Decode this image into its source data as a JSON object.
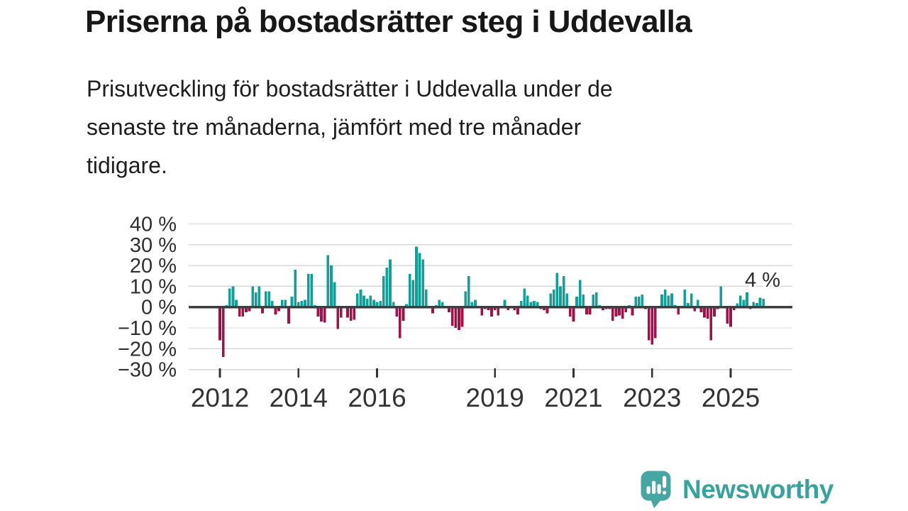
{
  "header": {
    "title": "Priserna på bostadsrätter steg i Uddevalla",
    "subtitle": "Prisutveckling för bostadsrätter i Uddevalla under de\nsenaste tre månaderna, jämfört med tre månader\ntidigare."
  },
  "chart_data": {
    "type": "bar",
    "unit": "%",
    "frequency": "monthly",
    "start_month": "2012-01",
    "end_month": "2025-11",
    "values": [
      -16,
      -24,
      1,
      9,
      10,
      3.5,
      -4.5,
      -4.5,
      -2.5,
      -2,
      10,
      7,
      10,
      -3,
      7.5,
      7.5,
      3,
      -3.5,
      -2,
      3.5,
      3.5,
      -8,
      5,
      18,
      2.5,
      3,
      3.5,
      16,
      16,
      1,
      -4.5,
      -7,
      -7.5,
      25,
      20,
      12,
      -10.5,
      -5,
      0.5,
      -5,
      -6.5,
      -6,
      6.5,
      8.5,
      5.5,
      4,
      5.5,
      3.5,
      2.5,
      3,
      15,
      19,
      23,
      2.5,
      -4.5,
      -15,
      -6.5,
      1.5,
      16,
      13,
      29,
      26,
      23,
      8.5,
      0,
      -3,
      1,
      3.5,
      2.5,
      0,
      -2.5,
      -9,
      -10,
      -11,
      -9.5,
      7.5,
      15,
      2.5,
      3.5,
      0,
      -4,
      -1,
      -1.5,
      -4.5,
      -1.5,
      -4,
      0,
      3.5,
      -1.5,
      0,
      -1.5,
      -3.5,
      3,
      9,
      5.5,
      2.5,
      3,
      2.5,
      -1,
      -1.5,
      -3,
      6.5,
      8.5,
      16.5,
      10,
      15,
      6.5,
      -4.5,
      -7,
      5,
      13,
      6,
      -3.5,
      -3.5,
      6,
      7,
      1,
      -1.5,
      -1,
      -1,
      -6.5,
      -4.5,
      -4,
      -5.5,
      -2.5,
      1,
      -4,
      5,
      5,
      6,
      -1,
      -16,
      -18,
      -15,
      0,
      6,
      8.5,
      5.5,
      6.5,
      1,
      -3.5,
      0,
      8.5,
      2,
      6.5,
      -2,
      3.5,
      -2.5,
      -5,
      -5.5,
      -16,
      -4.5,
      -1,
      10,
      -0.5,
      -8,
      -9.5,
      -1.5,
      1.7,
      5.5,
      3.5,
      7,
      -1,
      2.5,
      2,
      4.5,
      4
    ],
    "year_ticks": [
      "2012",
      "2014",
      "2016",
      "2019",
      "2021",
      "2023",
      "2025"
    ],
    "ytick_values": [
      40,
      30,
      20,
      10,
      0,
      -10,
      -20,
      -30
    ],
    "ytick_labels": [
      "40 %",
      "30 %",
      "20 %",
      "10 %",
      "0 %",
      "−10 %",
      "−20 %",
      "−30 %"
    ],
    "ylim": [
      -33,
      45
    ],
    "grid": true,
    "legend": false,
    "annotation": {
      "text": "4 %",
      "value": 4
    },
    "colors": {
      "positive": "#10a09a",
      "negative": "#a21048",
      "grid": "#d9d9d9",
      "zero_line": "#3e3e3e",
      "axis_text": "#2f2f2f",
      "annotation_text": "#2b2b2b"
    }
  },
  "footer": {
    "brand": "Newsworthy",
    "brand_color": "#3aa29c",
    "logo_icon_color": "#47a6a1"
  }
}
